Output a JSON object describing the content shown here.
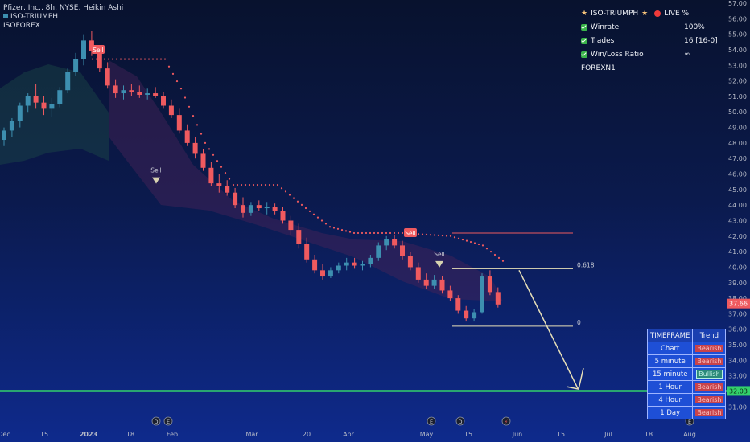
{
  "header": {
    "symbol_line": "Pfizer, Inc., 8h, NYSE, Heikin Ashi",
    "indicator_line": "ISO-TRIUMPH",
    "indicator_line2": "ISOFOREX"
  },
  "live_panel": {
    "title": "ISO-TRIUMPH",
    "live": "LIVE %",
    "rows": [
      {
        "label": "Winrate",
        "value": "100%"
      },
      {
        "label": "Trades",
        "value": "16 [16-0]"
      },
      {
        "label": "Win/Loss Ratio",
        "value": "∞"
      }
    ],
    "footer": "FOREXN1"
  },
  "timeframe_table": {
    "header": [
      "TIMEFRAME",
      "Trend"
    ],
    "rows": [
      {
        "tf": "Chart",
        "trend": "Bearish"
      },
      {
        "tf": "5 minute",
        "trend": "Bearish"
      },
      {
        "tf": "15 minute",
        "trend": "Bullish"
      },
      {
        "tf": "1 Hour",
        "trend": "Bearish"
      },
      {
        "tf": "4 Hour",
        "trend": "Bearish"
      },
      {
        "tf": "1 Day",
        "trend": "Bearish"
      }
    ]
  },
  "colors": {
    "bull": "#3d8fb0",
    "bear": "#ef5a5f",
    "support": "#33d16b",
    "fib": "#e8e0b8",
    "sell": "#ef5a5f"
  },
  "chart_data": {
    "type": "candlestick",
    "y_axis": {
      "min": 30.5,
      "max": 57.0,
      "labels": [
        "57.00",
        "56.00",
        "55.00",
        "54.00",
        "53.00",
        "52.00",
        "51.00",
        "50.00",
        "49.00",
        "48.00",
        "47.00",
        "46.00",
        "45.00",
        "44.00",
        "43.00",
        "42.00",
        "41.00",
        "40.00",
        "39.00",
        "38.00",
        "37.00",
        "36.00",
        "35.00",
        "34.00",
        "33.00",
        "32.00",
        "31.00"
      ]
    },
    "x_axis": {
      "labels": [
        "Dec",
        "15",
        "2023",
        "18",
        "Feb",
        "Mar",
        "20",
        "Apr",
        "May",
        "15",
        "Jun",
        "15",
        "Jul",
        "18",
        "Aug"
      ]
    },
    "last_price": "37.66",
    "support_level": {
      "value": 32.03,
      "label": "32.03"
    },
    "fib_levels": [
      {
        "label": "1",
        "value": 42.2
      },
      {
        "label": "0.618",
        "value": 39.9
      },
      {
        "label": "0",
        "value": 36.2
      }
    ],
    "signals": [
      {
        "label": "Sell",
        "style": "box"
      },
      {
        "label": "Sell",
        "style": "text"
      },
      {
        "label": "Sell",
        "style": "box"
      },
      {
        "label": "Sell",
        "style": "text"
      }
    ],
    "event_icons": [
      "D",
      "E",
      "E",
      "D",
      "⚡",
      "E"
    ],
    "candles": [
      [
        48.2,
        49.0,
        47.8,
        48.8
      ],
      [
        48.8,
        49.6,
        48.4,
        49.4
      ],
      [
        49.4,
        50.6,
        49.0,
        50.4
      ],
      [
        50.4,
        51.2,
        50.0,
        51.0
      ],
      [
        51.0,
        51.8,
        50.2,
        50.6
      ],
      [
        50.6,
        51.0,
        49.8,
        50.2
      ],
      [
        50.2,
        50.9,
        49.7,
        50.5
      ],
      [
        50.5,
        51.6,
        50.3,
        51.4
      ],
      [
        51.4,
        52.8,
        51.2,
        52.6
      ],
      [
        52.6,
        53.8,
        52.3,
        53.4
      ],
      [
        53.4,
        55.0,
        53.0,
        54.6
      ],
      [
        54.6,
        55.2,
        53.6,
        53.9
      ],
      [
        53.9,
        54.3,
        52.6,
        52.8
      ],
      [
        52.8,
        53.2,
        51.5,
        51.7
      ],
      [
        51.7,
        52.1,
        50.9,
        51.2
      ],
      [
        51.2,
        51.7,
        50.8,
        51.4
      ],
      [
        51.4,
        51.8,
        51.0,
        51.3
      ],
      [
        51.3,
        51.7,
        50.9,
        51.1
      ],
      [
        51.1,
        51.5,
        50.8,
        51.2
      ],
      [
        51.2,
        51.6,
        50.9,
        51.0
      ],
      [
        51.0,
        51.3,
        50.2,
        50.4
      ],
      [
        50.4,
        50.8,
        49.6,
        49.8
      ],
      [
        49.8,
        50.2,
        48.6,
        48.8
      ],
      [
        48.8,
        49.2,
        47.8,
        48.0
      ],
      [
        48.0,
        48.4,
        47.0,
        47.3
      ],
      [
        47.3,
        47.6,
        46.2,
        46.4
      ],
      [
        46.4,
        46.8,
        45.2,
        45.4
      ],
      [
        45.4,
        46.0,
        44.8,
        45.2
      ],
      [
        45.2,
        45.6,
        44.6,
        44.8
      ],
      [
        44.8,
        45.1,
        43.8,
        44.0
      ],
      [
        44.0,
        44.5,
        43.2,
        43.5
      ],
      [
        43.5,
        44.2,
        43.3,
        44.0
      ],
      [
        44.0,
        44.3,
        43.6,
        43.8
      ],
      [
        43.8,
        44.2,
        43.4,
        43.9
      ],
      [
        43.9,
        44.1,
        43.4,
        43.6
      ],
      [
        43.6,
        43.9,
        42.8,
        43.0
      ],
      [
        43.0,
        43.3,
        42.1,
        42.4
      ],
      [
        42.4,
        42.8,
        41.2,
        41.5
      ],
      [
        41.5,
        41.9,
        40.3,
        40.5
      ],
      [
        40.5,
        40.8,
        39.6,
        39.8
      ],
      [
        39.8,
        40.2,
        39.2,
        39.4
      ],
      [
        39.4,
        40.0,
        39.3,
        39.8
      ],
      [
        39.8,
        40.3,
        39.6,
        40.1
      ],
      [
        40.1,
        40.6,
        39.8,
        40.3
      ],
      [
        40.3,
        40.6,
        39.9,
        40.1
      ],
      [
        40.1,
        40.4,
        39.8,
        40.2
      ],
      [
        40.2,
        40.8,
        40.0,
        40.6
      ],
      [
        40.6,
        41.6,
        40.4,
        41.4
      ],
      [
        41.4,
        42.0,
        41.1,
        41.8
      ],
      [
        41.8,
        42.1,
        41.2,
        41.4
      ],
      [
        41.4,
        41.7,
        40.5,
        40.7
      ],
      [
        40.7,
        41.0,
        39.8,
        40.0
      ],
      [
        40.0,
        40.3,
        39.0,
        39.2
      ],
      [
        39.2,
        39.6,
        38.6,
        38.8
      ],
      [
        38.8,
        39.5,
        38.6,
        39.2
      ],
      [
        39.2,
        39.4,
        38.3,
        38.5
      ],
      [
        38.5,
        38.8,
        37.8,
        38.0
      ],
      [
        38.0,
        38.2,
        37.0,
        37.2
      ],
      [
        37.2,
        37.5,
        36.5,
        36.7
      ],
      [
        36.7,
        37.3,
        36.5,
        37.1
      ],
      [
        37.1,
        39.6,
        37.0,
        39.4
      ],
      [
        39.4,
        39.8,
        38.2,
        38.4
      ],
      [
        38.4,
        38.7,
        37.4,
        37.6
      ]
    ]
  }
}
